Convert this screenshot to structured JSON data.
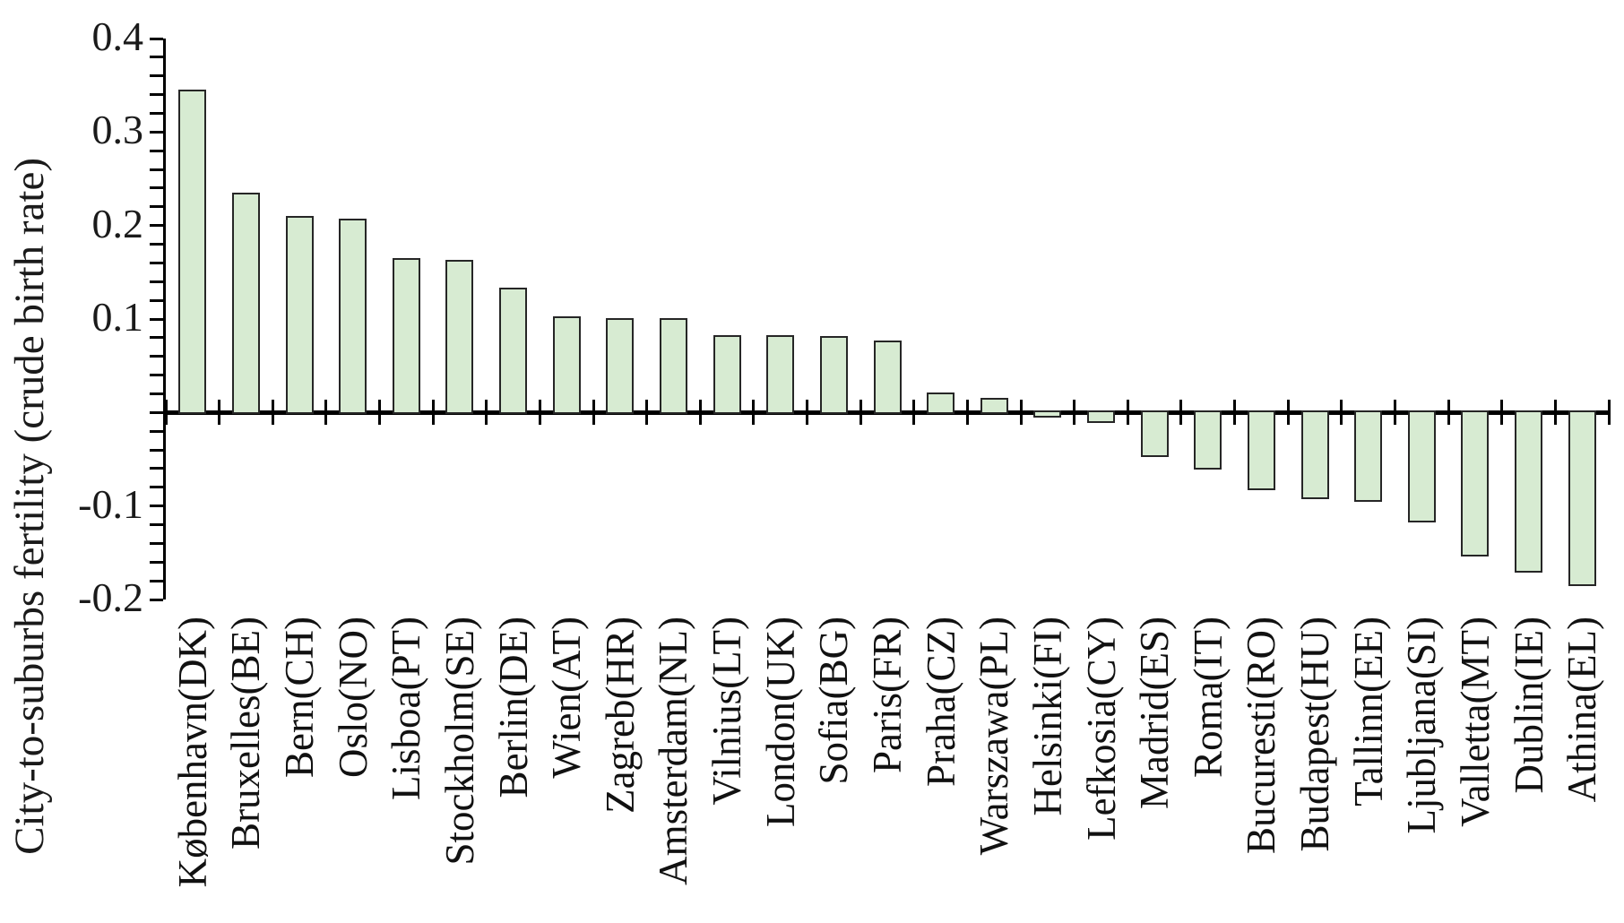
{
  "chart_data": {
    "type": "bar",
    "title": "",
    "xlabel": "",
    "ylabel": "City-to-suburbs fertility (crude birth rate)",
    "ylim": [
      -0.2,
      0.4
    ],
    "ytick_labels": [
      "0.4",
      "0.3",
      "0.2",
      "0.1",
      "-0.1",
      "-0.2"
    ],
    "ytick_major_values": [
      0.4,
      0.3,
      0.2,
      0.1,
      -0.1,
      -0.2
    ],
    "ytick_minor_step": 0.02,
    "zero_label_shown": false,
    "grid": false,
    "legend": "none",
    "bar_fill_color": "#d7ebd2",
    "bar_border_color": "#262626",
    "axis_color": "#000000",
    "text_color": "#1a1a1a",
    "categories": [
      "København(DK)",
      "Bruxelles(BE)",
      "Bern(CH)",
      "Oslo(NO)",
      "Lisboa(PT)",
      "Stockholm(SE)",
      "Berlin(DE)",
      "Wien(AT)",
      "Zagreb(HR)",
      "Amsterdam(NL)",
      "Vilnius(LT)",
      "London(UK)",
      "Sofia(BG)",
      "Paris(FR)",
      "Praha(CZ)",
      "Warszawa(PL)",
      "Helsinki(FI)",
      "Lefkosia(CY)",
      "Madrid(ES)",
      "Roma(IT)",
      "Bucuresti(RO)",
      "Budapest(HU)",
      "Tallinn(EE)",
      "Ljubljana(SI)",
      "Valletta(MT)",
      "Dublin(IE)",
      "Athina(EL)"
    ],
    "values": [
      0.345,
      0.235,
      0.21,
      0.207,
      0.165,
      0.163,
      0.134,
      0.103,
      0.101,
      0.101,
      0.083,
      0.083,
      0.082,
      0.077,
      0.021,
      0.016,
      -0.005,
      -0.011,
      -0.048,
      -0.061,
      -0.083,
      -0.093,
      -0.096,
      -0.118,
      -0.154,
      -0.171,
      -0.186
    ]
  }
}
